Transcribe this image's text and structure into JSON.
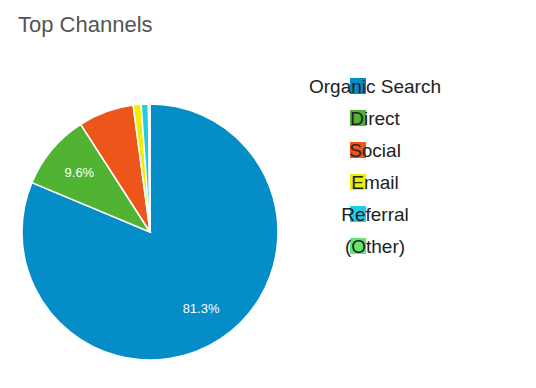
{
  "chart_data": {
    "type": "pie",
    "title": "Top Channels",
    "categories": [
      "Organic Search",
      "Direct",
      "Social",
      "Email",
      "Referral",
      "(Other)"
    ],
    "values": [
      81.3,
      9.6,
      7.0,
      1.0,
      0.9,
      0.2
    ],
    "colors": [
      "#058dc7",
      "#50b432",
      "#ed561b",
      "#edef00",
      "#24cbe5",
      "#64e572"
    ],
    "data_labels": true,
    "value_labels": [
      "81.3%",
      "9.6%",
      null,
      null,
      null,
      null
    ],
    "legend": "right"
  }
}
